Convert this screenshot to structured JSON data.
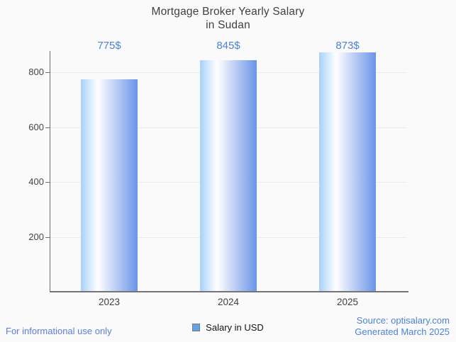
{
  "chart_data": {
    "type": "bar",
    "title": "Mortgage Broker Yearly Salary in Sudan",
    "title_lines": [
      "Mortgage Broker Yearly Salary",
      "in Sudan"
    ],
    "categories": [
      "2023",
      "2024",
      "2025"
    ],
    "series": [
      {
        "name": "Salary in USD",
        "values": [
          775,
          845,
          873
        ]
      }
    ],
    "values": [
      775,
      845,
      873
    ],
    "value_labels": [
      "775$",
      "845$",
      "873$"
    ],
    "xlabel": "",
    "ylabel": "",
    "ylim": [
      0,
      880
    ],
    "y_ticks": [
      200,
      400,
      600,
      800
    ],
    "grid": true,
    "legend": {
      "label": "Salary in USD",
      "position": "bottom"
    },
    "colors": {
      "background": "#fafafa",
      "title": "#404040",
      "value_label": "#4d82d9",
      "axis_text": "#454545",
      "gridline": "#ebebeb",
      "axis_line": "#6e6e6e",
      "bar_gradient_left": "#a8d2f9",
      "bar_gradient_highlight": "#ffffff",
      "bar_gradient_right": "#6b94e8",
      "legend_swatch_fill": "#64a2e8",
      "legend_swatch_border": "#7a7a7a"
    }
  },
  "footer": {
    "disclaimer": "For informational use only",
    "disclaimer_color": "#5b80da",
    "source": "Source: optisalary.com",
    "generated": "Generated March 2025",
    "source_color": "#4d82d9"
  }
}
